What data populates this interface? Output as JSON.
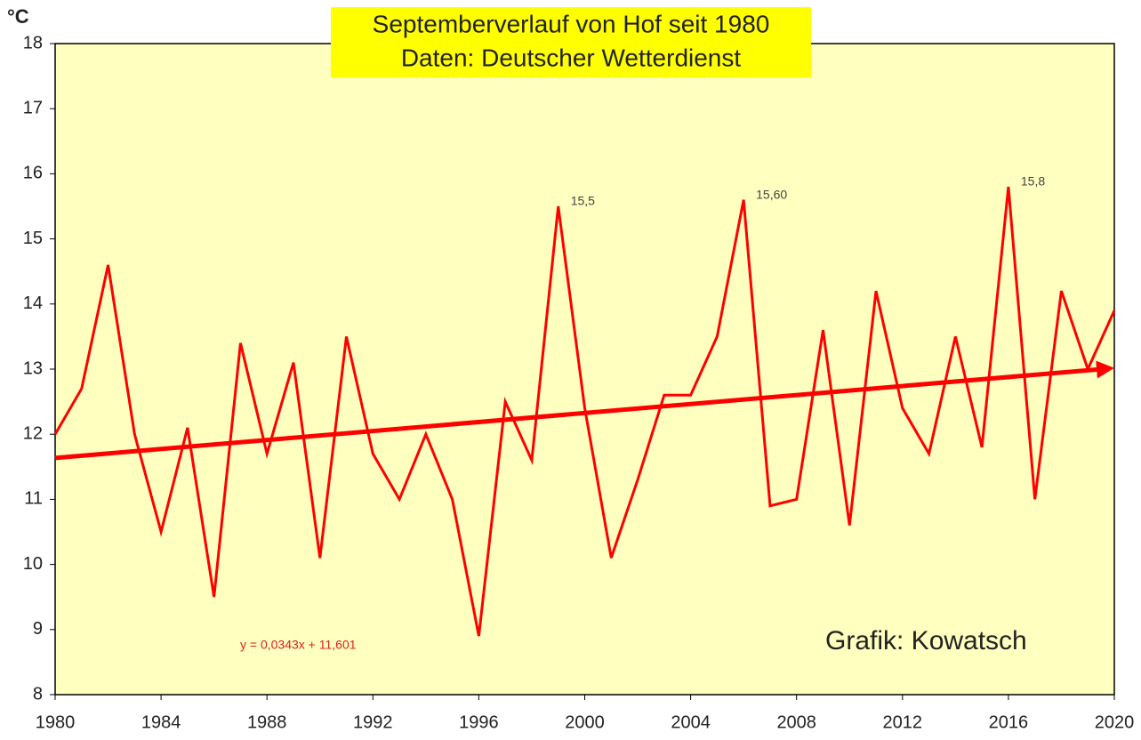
{
  "chart_data": {
    "type": "line",
    "title": "Septemberverlauf von Hof seit 1980",
    "subtitle": "Daten: Deutscher Wetterdienst",
    "ylabel": "°C",
    "x": [
      1980,
      1981,
      1982,
      1983,
      1984,
      1985,
      1986,
      1987,
      1988,
      1989,
      1990,
      1991,
      1992,
      1993,
      1994,
      1995,
      1996,
      1997,
      1998,
      1999,
      2000,
      2001,
      2002,
      2003,
      2004,
      2005,
      2006,
      2007,
      2008,
      2009,
      2010,
      2011,
      2012,
      2013,
      2014,
      2015,
      2016,
      2017,
      2018,
      2019,
      2020
    ],
    "series": [
      {
        "name": "September",
        "color": "#ff0000",
        "values": [
          12.0,
          12.7,
          14.6,
          12.0,
          10.5,
          12.1,
          9.5,
          13.4,
          11.7,
          13.1,
          10.1,
          13.5,
          11.7,
          11.0,
          12.0,
          11.0,
          8.9,
          12.5,
          11.6,
          15.5,
          12.4,
          10.1,
          11.3,
          12.6,
          12.6,
          13.5,
          15.6,
          10.9,
          11.0,
          13.6,
          10.6,
          14.2,
          12.4,
          11.7,
          13.5,
          11.8,
          15.8,
          11.0,
          14.2,
          13.0,
          13.9
        ],
        "value_labels": [
          null,
          null,
          null,
          null,
          null,
          null,
          null,
          null,
          null,
          null,
          null,
          null,
          null,
          null,
          null,
          null,
          null,
          null,
          null,
          "15,5",
          null,
          null,
          null,
          null,
          null,
          null,
          "15,60",
          null,
          null,
          null,
          null,
          null,
          null,
          null,
          null,
          null,
          "15,8",
          null,
          null,
          null,
          null
        ]
      }
    ],
    "trend": {
      "color": "#ff0000",
      "x": [
        1980,
        2020
      ],
      "values": [
        11.635,
        13.007
      ],
      "equation": "y = 0,0343x + 11,601"
    },
    "annotation": "Grafik: Kowatsch",
    "xlim": [
      1980,
      2020
    ],
    "xticks": [
      1980,
      1984,
      1988,
      1992,
      1996,
      2000,
      2004,
      2008,
      2012,
      2016,
      2020
    ],
    "ylim": [
      8,
      18
    ],
    "yticks": [
      8,
      9,
      10,
      11,
      12,
      13,
      14,
      15,
      16,
      17,
      18
    ],
    "grid": false,
    "background": "#ffffc0"
  }
}
